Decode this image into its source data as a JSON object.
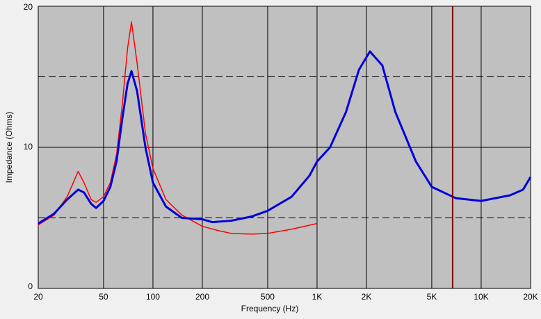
{
  "chart_data": {
    "type": "line",
    "xlabel": "Frequency (Hz)",
    "ylabel": "Impedance (Ohms)",
    "xscale": "log",
    "xlim": [
      20,
      20000
    ],
    "ylim": [
      0,
      20
    ],
    "xticks": [
      20,
      50,
      100,
      200,
      500,
      {
        "value": 1000,
        "label": "1K"
      },
      {
        "value": 2000,
        "label": "2K"
      },
      {
        "value": 5000,
        "label": "5K"
      },
      {
        "value": 10000,
        "label": "10K"
      },
      {
        "value": 20000,
        "label": "20K"
      }
    ],
    "yticks": [
      0,
      10,
      20
    ],
    "yminor": [
      5,
      15
    ],
    "grid": true,
    "background": "#c0c0c0",
    "cursor_x": 6700,
    "cursor_color": "#800000",
    "series": [
      {
        "color": "#ff0000",
        "width": 1.5,
        "x": [
          20,
          25,
          30,
          33,
          35,
          38,
          42,
          45,
          50,
          55,
          60,
          65,
          70,
          74,
          80,
          90,
          100,
          120,
          150,
          200,
          250,
          300,
          400,
          500,
          700,
          1000
        ],
        "values": [
          4.5,
          5.2,
          6.5,
          7.6,
          8.3,
          7.5,
          6.3,
          6.1,
          6.5,
          7.5,
          9.5,
          13,
          17,
          18.9,
          16,
          11,
          8.5,
          6.3,
          5.2,
          4.4,
          4.1,
          3.9,
          3.85,
          3.9,
          4.2,
          4.6
        ]
      },
      {
        "color": "#0000dd",
        "width": 3,
        "x": [
          20,
          25,
          30,
          35,
          38,
          42,
          45,
          50,
          55,
          60,
          65,
          70,
          74,
          80,
          90,
          100,
          120,
          150,
          200,
          230,
          300,
          400,
          500,
          700,
          900,
          1000,
          1200,
          1500,
          1800,
          2100,
          2500,
          3000,
          4000,
          5000,
          7000,
          10000,
          15000,
          18000,
          20000
        ],
        "values": [
          4.6,
          5.3,
          6.3,
          7.0,
          6.8,
          6.0,
          5.7,
          6.2,
          7.2,
          9,
          12,
          14.5,
          15.4,
          14,
          10,
          7.5,
          5.8,
          5.0,
          4.9,
          4.7,
          4.8,
          5.1,
          5.5,
          6.5,
          8,
          9,
          10,
          12.5,
          15.5,
          16.8,
          15.8,
          12.5,
          9,
          7.2,
          6.4,
          6.2,
          6.6,
          7.0,
          7.9
        ]
      }
    ]
  }
}
